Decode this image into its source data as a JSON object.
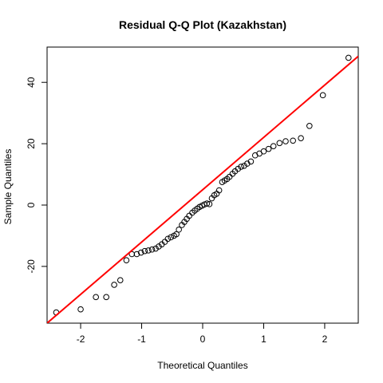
{
  "chart_data": {
    "type": "scatter",
    "title": "Residual Q-Q Plot (Kazakhstan)",
    "xlabel": "Theoretical Quantiles",
    "ylabel": "Sample Quantiles",
    "xlim": [
      -2.55,
      2.55
    ],
    "ylim": [
      -38.5,
      51.5
    ],
    "xticks": [
      -2,
      -1,
      0,
      1,
      2
    ],
    "yticks": [
      -20,
      0,
      20,
      40
    ],
    "xtick_labels": [
      "-2",
      "-1",
      "0",
      "1",
      "2"
    ],
    "ytick_labels": [
      "-20",
      "0",
      "20",
      "40"
    ],
    "grid": false,
    "reference_line": {
      "color": "#ff0000",
      "points": [
        [
          -2.55,
          -38.5
        ],
        [
          2.55,
          48.5
        ]
      ]
    },
    "colors": {
      "points": "#000000",
      "reference_line": "#ff0000"
    },
    "points": [
      [
        -2.4,
        -35
      ],
      [
        -2.0,
        -34
      ],
      [
        -1.75,
        -30
      ],
      [
        -1.58,
        -30
      ],
      [
        -1.45,
        -26
      ],
      [
        -1.35,
        -24.5
      ],
      [
        -1.25,
        -18
      ],
      [
        -1.16,
        -16
      ],
      [
        -1.08,
        -16
      ],
      [
        -1.01,
        -15.5
      ],
      [
        -0.95,
        -15
      ],
      [
        -0.89,
        -14.8
      ],
      [
        -0.83,
        -14.5
      ],
      [
        -0.77,
        -14.2
      ],
      [
        -0.72,
        -13.5
      ],
      [
        -0.67,
        -12.8
      ],
      [
        -0.62,
        -12
      ],
      [
        -0.57,
        -11
      ],
      [
        -0.52,
        -10.5
      ],
      [
        -0.47,
        -10
      ],
      [
        -0.43,
        -9.5
      ],
      [
        -0.39,
        -8
      ],
      [
        -0.34,
        -6.5
      ],
      [
        -0.3,
        -5.5
      ],
      [
        -0.26,
        -4.5
      ],
      [
        -0.22,
        -3.5
      ],
      [
        -0.17,
        -2.5
      ],
      [
        -0.13,
        -1.8
      ],
      [
        -0.09,
        -1.2
      ],
      [
        -0.05,
        -0.6
      ],
      [
        -0.01,
        -0.2
      ],
      [
        0.03,
        0.2
      ],
      [
        0.07,
        0.5
      ],
      [
        0.11,
        0.3
      ],
      [
        0.15,
        2.2
      ],
      [
        0.19,
        3.2
      ],
      [
        0.23,
        3.7
      ],
      [
        0.27,
        4.8
      ],
      [
        0.32,
        7.5
      ],
      [
        0.36,
        8
      ],
      [
        0.4,
        8.5
      ],
      [
        0.44,
        9.2
      ],
      [
        0.49,
        10.2
      ],
      [
        0.53,
        11
      ],
      [
        0.58,
        11.8
      ],
      [
        0.63,
        12.5
      ],
      [
        0.68,
        12.8
      ],
      [
        0.73,
        13.5
      ],
      [
        0.79,
        14.2
      ],
      [
        0.86,
        16.2
      ],
      [
        0.93,
        16.8
      ],
      [
        1.0,
        17.5
      ],
      [
        1.08,
        18.3
      ],
      [
        1.16,
        19.2
      ],
      [
        1.26,
        20.2
      ],
      [
        1.36,
        20.8
      ],
      [
        1.48,
        21
      ],
      [
        1.61,
        21.8
      ],
      [
        1.75,
        25.8
      ],
      [
        1.97,
        35.8
      ],
      [
        2.39,
        48
      ]
    ]
  }
}
